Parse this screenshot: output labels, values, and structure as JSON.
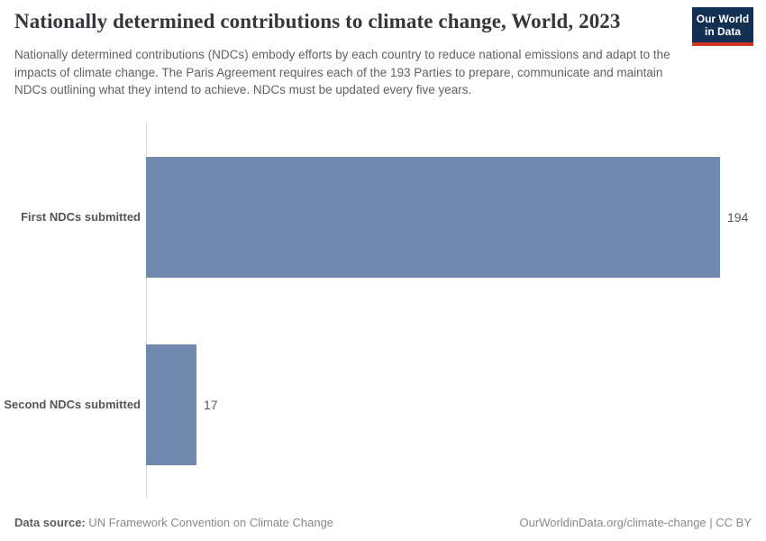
{
  "header": {
    "title": "Nationally determined contributions to climate change, World, 2023",
    "subtitle": "Nationally determined contributions (NDCs) embody efforts by each country to reduce national emissions and adapt to the impacts of climate change. The Paris Agreement requires each of the 193 Parties to prepare, communicate and maintain NDCs outlining what they intend to achieve. NDCs must be updated every five years."
  },
  "logo": {
    "line1": "Our World",
    "line2": "in Data",
    "bg_color": "#132f51",
    "accent_color": "#cc3425"
  },
  "chart_data": {
    "type": "bar",
    "orientation": "horizontal",
    "title": "Nationally determined contributions to climate change, World, 2023",
    "categories": [
      "First NDCs submitted",
      "Second NDCs submitted"
    ],
    "values": [
      194,
      17
    ],
    "xlim": [
      0,
      194
    ],
    "grid": false,
    "bar_color": "#7289ae",
    "axis_line_color": "#dadada",
    "value_label_position": "end"
  },
  "footer": {
    "source_label": "Data source:",
    "source_text": " UN Framework Convention on Climate Change",
    "link_text": "OurWorldinData.org/climate-change | CC BY"
  }
}
